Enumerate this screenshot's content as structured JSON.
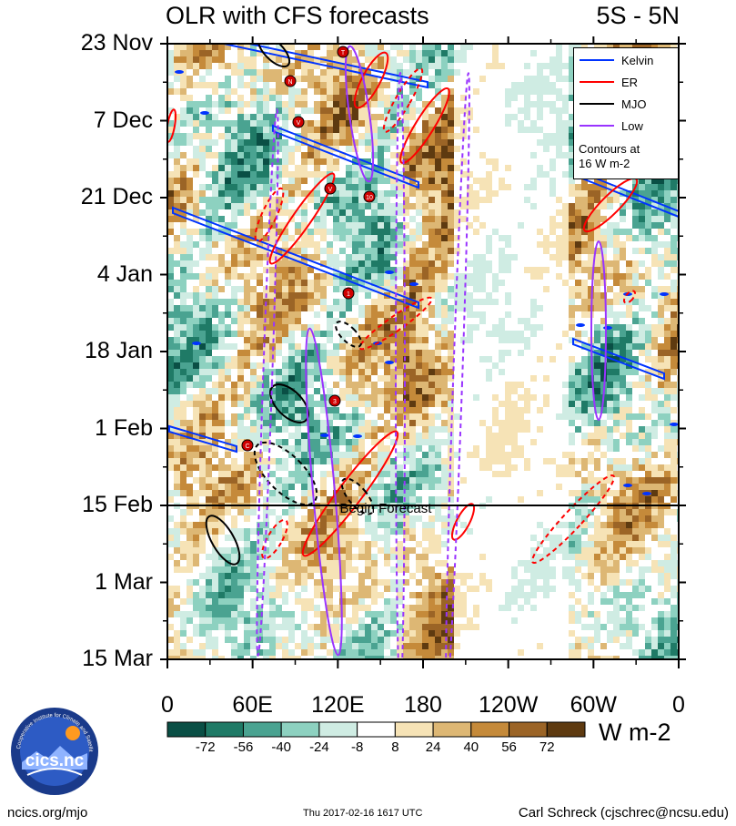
{
  "title_left": "OLR with CFS forecasts",
  "title_right": "5S - 5N",
  "chart_data": {
    "type": "heatmap",
    "title": "OLR with CFS forecasts",
    "region": "5S - 5N",
    "y_axis": {
      "labels": [
        "23 Nov",
        "7 Dec",
        "21 Dec",
        "4 Jan",
        "18 Jan",
        "1 Feb",
        "15 Feb",
        "1 Mar",
        "15 Mar"
      ]
    },
    "x_axis": {
      "labels": [
        "0",
        "60E",
        "120E",
        "180",
        "120W",
        "60W",
        "0"
      ],
      "range_deg": [
        0,
        360
      ]
    },
    "forecast_line_label": "Begin Forecast",
    "forecast_start": "15 Feb",
    "colorbar": {
      "ticks": [
        "-72",
        "-56",
        "-40",
        "-24",
        "-8",
        "8",
        "24",
        "40",
        "56",
        "72"
      ],
      "colors": [
        "#0a4f45",
        "#1f7a66",
        "#4aa391",
        "#8dd1c0",
        "#cfece3",
        "#ffffff",
        "#f6e3b6",
        "#ddb774",
        "#c58a3a",
        "#9b6426",
        "#5e3a10"
      ],
      "units": "W m-2"
    },
    "legend": [
      {
        "name": "Kelvin",
        "color": "#0033ff"
      },
      {
        "name": "ER",
        "color": "#ff0000"
      },
      {
        "name": "MJO",
        "color": "#000000"
      },
      {
        "name": "Low",
        "color": "#9933ff"
      }
    ],
    "contour_note": [
      "Contours at",
      "16 W m-2"
    ],
    "storm_markers": [
      "T",
      "N",
      "V",
      "V",
      "10",
      "1",
      "3",
      "C"
    ]
  },
  "logo_text": "cics.nc",
  "logo_ring_text": "Cooperative Institute for Climate and Satellites",
  "footer_left": "ncics.org/mjo",
  "footer_center": "Thu 2017-02-16 1617 UTC",
  "footer_right": "Carl Schreck (cjschrec@ncsu.edu)"
}
